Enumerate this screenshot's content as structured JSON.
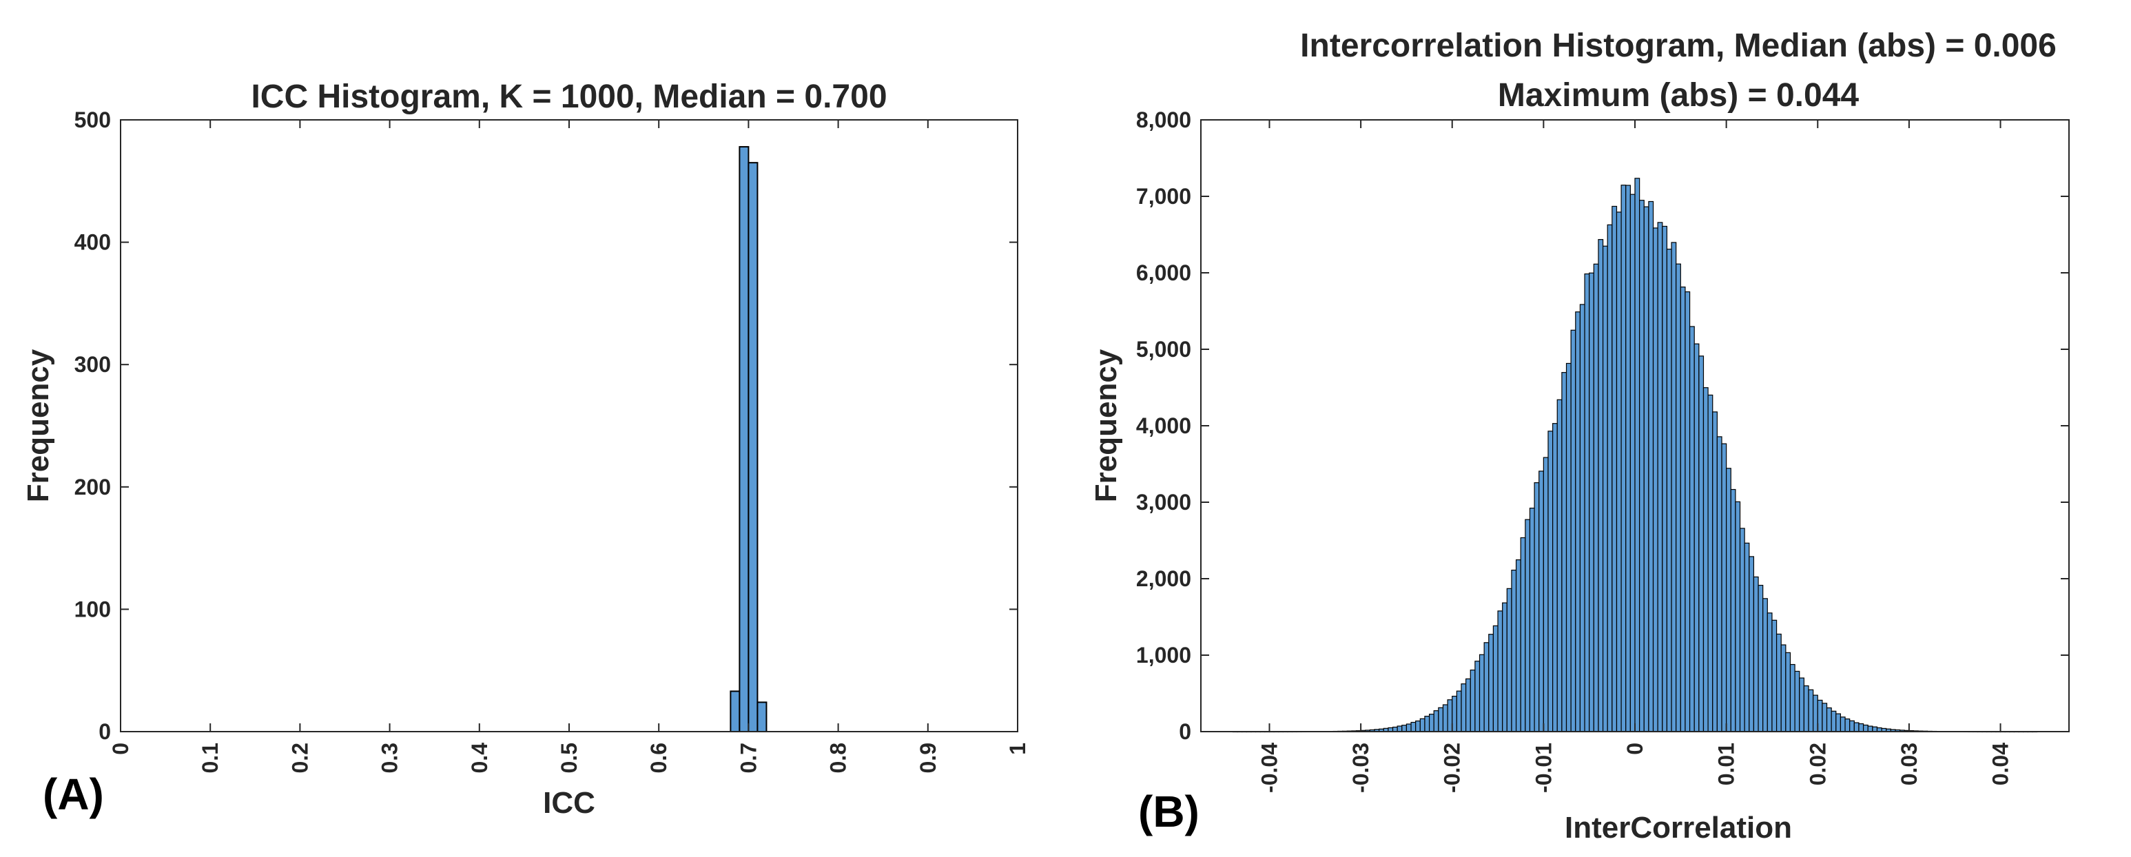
{
  "chart_data": [
    {
      "panel_label": "(A)",
      "type": "bar",
      "title": "ICC Histogram, K = 1000, Median = 0.700",
      "xlabel": "ICC",
      "ylabel": "Frequency",
      "xlim": [
        0,
        1
      ],
      "ylim": [
        0,
        500
      ],
      "xticks": [
        0,
        0.1,
        0.2,
        0.3,
        0.4,
        0.5,
        0.6,
        0.7,
        0.8,
        0.9,
        1
      ],
      "xtick_labels": [
        "0",
        "0.1",
        "0.2",
        "0.3",
        "0.4",
        "0.5",
        "0.6",
        "0.7",
        "0.8",
        "0.9",
        "1"
      ],
      "yticks": [
        0,
        100,
        200,
        300,
        400,
        500
      ],
      "ytick_labels": [
        "0",
        "100",
        "200",
        "300",
        "400",
        "500"
      ],
      "bin_width": 0.01,
      "bin_edges_start": [
        0.68,
        0.69,
        0.7,
        0.71
      ],
      "values": [
        33,
        478,
        465,
        24
      ],
      "bar_color": "#5B9BD5",
      "edge_color": "#000000"
    },
    {
      "panel_label": "(B)",
      "type": "bar",
      "title": "Intercorrelation Histogram, Median (abs) = 0.006",
      "subtitle": "Maximum (abs) = 0.044",
      "xlabel": "InterCorrelation",
      "ylabel": "Frequency",
      "xlim": [
        -0.0475,
        0.0475
      ],
      "ylim": [
        0,
        8000
      ],
      "xticks": [
        -0.04,
        -0.03,
        -0.02,
        -0.01,
        0,
        0.01,
        0.02,
        0.03,
        0.04
      ],
      "xtick_labels": [
        "-0.04",
        "-0.03",
        "-0.02",
        "-0.01",
        "0",
        "0.01",
        "0.02",
        "0.03",
        "0.04"
      ],
      "yticks": [
        0,
        1000,
        2000,
        3000,
        4000,
        5000,
        6000,
        7000,
        8000
      ],
      "ytick_labels": [
        "0",
        "1,000",
        "2,000",
        "3,000",
        "4,000",
        "5,000",
        "6,000",
        "7,000",
        "8,000"
      ],
      "bin_width": 0.0005,
      "distribution": "approximately normal",
      "peak_x": 0,
      "peak_value": 7050,
      "std_dev": 0.0085,
      "min_x": -0.044,
      "max_x": 0.044,
      "bar_color": "#5B9BD5",
      "edge_color": "#000000"
    }
  ]
}
